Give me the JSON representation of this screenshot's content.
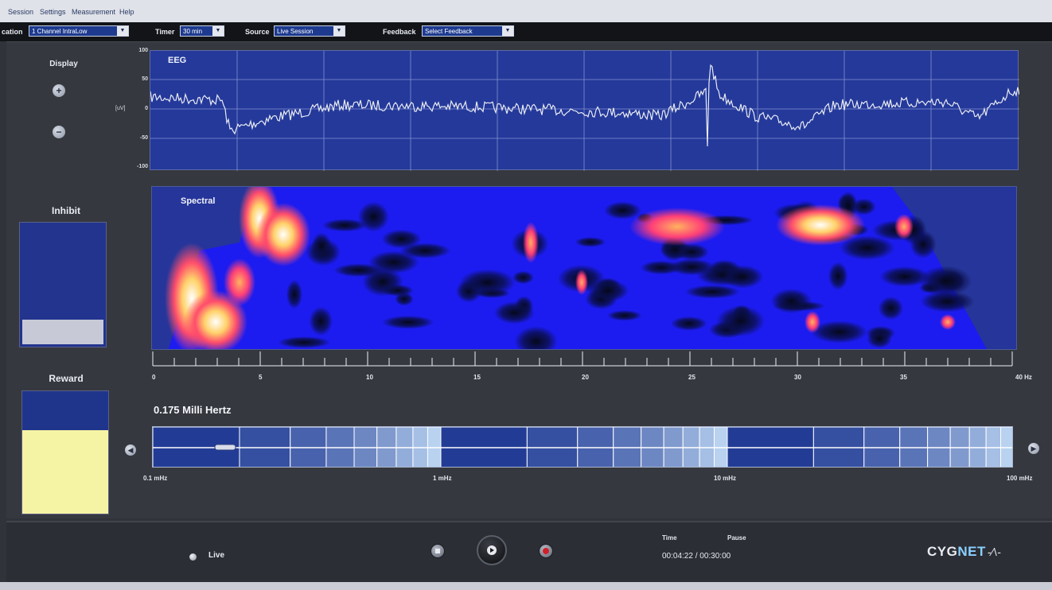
{
  "menu": [
    "Session",
    "Settings",
    "Measurement",
    "Help"
  ],
  "toolbar": {
    "location_label": "cation",
    "location_value": "1 Channel IntraLow",
    "timer_label": "Timer",
    "timer_value": "30 min",
    "source_label": "Source",
    "source_value": "Live Session",
    "feedback_label": "Feedback",
    "feedback_value": "Select Feedback"
  },
  "side": {
    "display_label": "Display",
    "zoom_in": "+",
    "zoom_out": "−",
    "inhibit_label": "Inhibit",
    "reward_label": "Reward",
    "inhibit_level": 0.2,
    "reward_level": 0.68
  },
  "eeg": {
    "title": "EEG",
    "unit": "[uV]",
    "y_ticks": [
      "100",
      "50",
      "0",
      "-50",
      "-100"
    ]
  },
  "spectral": {
    "title": "Spectral",
    "x_ticks": [
      "0",
      "5",
      "10",
      "15",
      "20",
      "25",
      "30",
      "35",
      "40 Hz"
    ]
  },
  "band": {
    "readout": "0.175 Milli Hertz",
    "labels": [
      "0.1 mHz",
      "1 mHz",
      "10 mHz",
      "100 mHz"
    ],
    "prev": "◀",
    "next": "▶"
  },
  "transport": {
    "live_label": "Live",
    "time_label": "Time",
    "pause_label": "Pause",
    "time_value": "00:04:22 /  00:30:00"
  },
  "brand": {
    "name_left": "CYG",
    "name_accent": "NET",
    "mark": "-⁄\\-"
  },
  "colors": {
    "panel_blue": "#24399a",
    "reward": "#f5f3a4",
    "record": "#d0202a",
    "brand_accent": "#8ad0ff"
  }
}
